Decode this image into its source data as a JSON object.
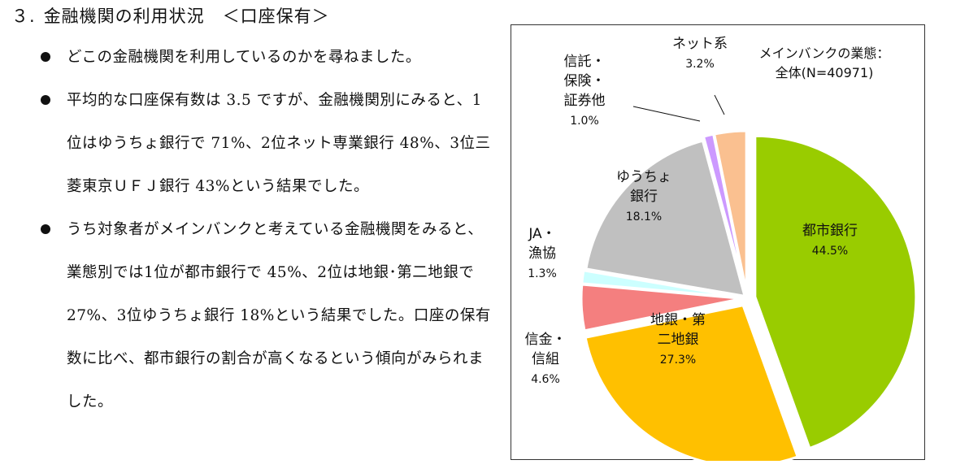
{
  "heading": {
    "number": "３.",
    "title": "金融機関の利用状況　＜口座保有＞"
  },
  "bullets": [
    "どこの金融機関を利用しているのかを尋ねました。",
    "平均的な口座保有数は 3.5 ですが、金融機関別にみると、1位はゆうちょ銀行で 71%、2位ネット専業銀行 48%、3位三菱東京ＵＦＪ銀行 43%という結果でした。",
    "うち対象者がメインバンクと考えている金融機関をみると、業態別では1位が都市銀行で 45%、2位は地銀･第二地銀で 27%、3位ゆうちょ銀行 18%という結果でした。口座の保有数に比べ、都市銀行の割合が高くなるという傾向がみられました。"
  ],
  "chart_data": {
    "type": "pie",
    "title": "メインバンクの業態：",
    "subtitle": "全体(N=40971)",
    "start": "12 o'clock, clockwise",
    "slices": [
      {
        "label_lines": [
          "都市銀行"
        ],
        "value": 44.5,
        "value_label": "44.5%",
        "color": "#99cc00"
      },
      {
        "label_lines": [
          "地銀・第",
          "二地銀"
        ],
        "value": 27.3,
        "value_label": "27.3%",
        "color": "#ffc000"
      },
      {
        "label_lines": [
          "信金・",
          "信組"
        ],
        "value": 4.6,
        "value_label": "4.6%",
        "color": "#f47f7f"
      },
      {
        "label_lines": [
          "JA・",
          "漁協"
        ],
        "value": 1.3,
        "value_label": "1.3%",
        "color": "#ccffff"
      },
      {
        "label_lines": [
          "ゆうちょ",
          "銀行"
        ],
        "value": 18.1,
        "value_label": "18.1%",
        "color": "#c0c0c0"
      },
      {
        "label_lines": [
          "信託・",
          "保険・",
          "証券他"
        ],
        "value": 1.0,
        "value_label": "1.0%",
        "color": "#cc99ff"
      },
      {
        "label_lines": [
          "ネット系"
        ],
        "value": 3.2,
        "value_label": "3.2%",
        "color": "#fac090"
      }
    ]
  }
}
